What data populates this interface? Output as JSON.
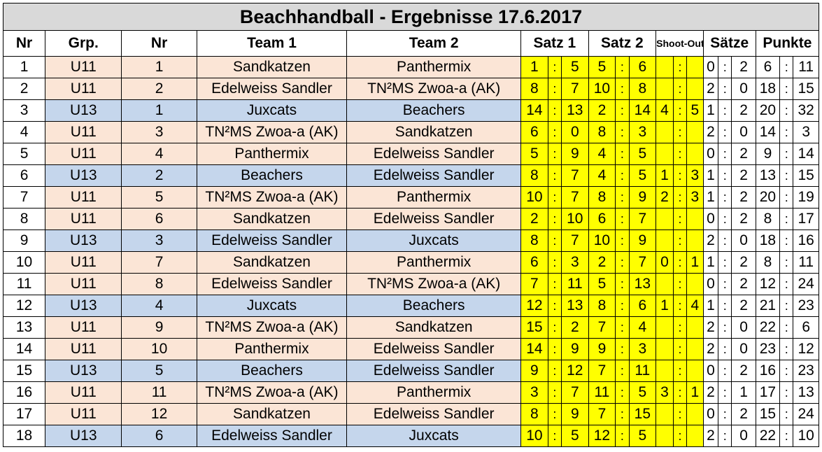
{
  "title": "Beachhandball - Ergebnisse 17.6.2017",
  "headers": {
    "nr": "Nr",
    "grp": "Grp.",
    "gnr": "Nr",
    "team1": "Team 1",
    "team2": "Team 2",
    "satz1": "Satz 1",
    "satz2": "Satz 2",
    "shootout": "Shoot-Out",
    "saetze": "Sätze",
    "punkte": "Punkte"
  },
  "colors": {
    "u11": "#fbe5d6",
    "u13": "#c5d6ec",
    "score": "#ffff00",
    "header": "#d9d9d9"
  },
  "rows": [
    {
      "nr": "1",
      "grp": "U11",
      "gnr": "1",
      "t1": "Sandkatzen",
      "t2": "Panthermix",
      "s1a": "1",
      "s1b": "5",
      "s2a": "5",
      "s2b": "6",
      "soa": "",
      "sob": "",
      "sa": "0",
      "sb": "2",
      "pa": "6",
      "pb": "11"
    },
    {
      "nr": "2",
      "grp": "U11",
      "gnr": "2",
      "t1": "Edelweiss Sandler",
      "t2": "TN²MS Zwoa-a (AK)",
      "s1a": "8",
      "s1b": "7",
      "s2a": "10",
      "s2b": "8",
      "soa": "",
      "sob": "",
      "sa": "2",
      "sb": "0",
      "pa": "18",
      "pb": "15"
    },
    {
      "nr": "3",
      "grp": "U13",
      "gnr": "1",
      "t1": "Juxcats",
      "t2": "Beachers",
      "s1a": "14",
      "s1b": "13",
      "s2a": "2",
      "s2b": "14",
      "soa": "4",
      "sob": "5",
      "sa": "1",
      "sb": "2",
      "pa": "20",
      "pb": "32"
    },
    {
      "nr": "4",
      "grp": "U11",
      "gnr": "3",
      "t1": "TN²MS Zwoa-a (AK)",
      "t2": "Sandkatzen",
      "s1a": "6",
      "s1b": "0",
      "s2a": "8",
      "s2b": "3",
      "soa": "",
      "sob": "",
      "sa": "2",
      "sb": "0",
      "pa": "14",
      "pb": "3"
    },
    {
      "nr": "5",
      "grp": "U11",
      "gnr": "4",
      "t1": "Panthermix",
      "t2": "Edelweiss Sandler",
      "s1a": "5",
      "s1b": "9",
      "s2a": "4",
      "s2b": "5",
      "soa": "",
      "sob": "",
      "sa": "0",
      "sb": "2",
      "pa": "9",
      "pb": "14"
    },
    {
      "nr": "6",
      "grp": "U13",
      "gnr": "2",
      "t1": "Beachers",
      "t2": "Edelweiss Sandler",
      "s1a": "8",
      "s1b": "7",
      "s2a": "4",
      "s2b": "5",
      "soa": "1",
      "sob": "3",
      "sa": "1",
      "sb": "2",
      "pa": "13",
      "pb": "15"
    },
    {
      "nr": "7",
      "grp": "U11",
      "gnr": "5",
      "t1": "TN²MS Zwoa-a (AK)",
      "t2": "Panthermix",
      "s1a": "10",
      "s1b": "7",
      "s2a": "8",
      "s2b": "9",
      "soa": "2",
      "sob": "3",
      "sa": "1",
      "sb": "2",
      "pa": "20",
      "pb": "19"
    },
    {
      "nr": "8",
      "grp": "U11",
      "gnr": "6",
      "t1": "Sandkatzen",
      "t2": "Edelweiss Sandler",
      "s1a": "2",
      "s1b": "10",
      "s2a": "6",
      "s2b": "7",
      "soa": "",
      "sob": "",
      "sa": "0",
      "sb": "2",
      "pa": "8",
      "pb": "17"
    },
    {
      "nr": "9",
      "grp": "U13",
      "gnr": "3",
      "t1": "Edelweiss Sandler",
      "t2": "Juxcats",
      "s1a": "8",
      "s1b": "7",
      "s2a": "10",
      "s2b": "9",
      "soa": "",
      "sob": "",
      "sa": "2",
      "sb": "0",
      "pa": "18",
      "pb": "16"
    },
    {
      "nr": "10",
      "grp": "U11",
      "gnr": "7",
      "t1": "Sandkatzen",
      "t2": "Panthermix",
      "s1a": "6",
      "s1b": "3",
      "s2a": "2",
      "s2b": "7",
      "soa": "0",
      "sob": "1",
      "sa": "1",
      "sb": "2",
      "pa": "8",
      "pb": "11"
    },
    {
      "nr": "11",
      "grp": "U11",
      "gnr": "8",
      "t1": "Edelweiss Sandler",
      "t2": "TN²MS Zwoa-a (AK)",
      "s1a": "7",
      "s1b": "11",
      "s2a": "5",
      "s2b": "13",
      "soa": "",
      "sob": "",
      "sa": "0",
      "sb": "2",
      "pa": "12",
      "pb": "24"
    },
    {
      "nr": "12",
      "grp": "U13",
      "gnr": "4",
      "t1": "Juxcats",
      "t2": "Beachers",
      "s1a": "12",
      "s1b": "13",
      "s2a": "8",
      "s2b": "6",
      "soa": "1",
      "sob": "4",
      "sa": "1",
      "sb": "2",
      "pa": "21",
      "pb": "23"
    },
    {
      "nr": "13",
      "grp": "U11",
      "gnr": "9",
      "t1": "TN²MS Zwoa-a (AK)",
      "t2": "Sandkatzen",
      "s1a": "15",
      "s1b": "2",
      "s2a": "7",
      "s2b": "4",
      "soa": "",
      "sob": "",
      "sa": "2",
      "sb": "0",
      "pa": "22",
      "pb": "6"
    },
    {
      "nr": "14",
      "grp": "U11",
      "gnr": "10",
      "t1": "Panthermix",
      "t2": "Edelweiss Sandler",
      "s1a": "14",
      "s1b": "9",
      "s2a": "9",
      "s2b": "3",
      "soa": "",
      "sob": "",
      "sa": "2",
      "sb": "0",
      "pa": "23",
      "pb": "12"
    },
    {
      "nr": "15",
      "grp": "U13",
      "gnr": "5",
      "t1": "Beachers",
      "t2": "Edelweiss Sandler",
      "s1a": "9",
      "s1b": "12",
      "s2a": "7",
      "s2b": "11",
      "soa": "",
      "sob": "",
      "sa": "0",
      "sb": "2",
      "pa": "16",
      "pb": "23"
    },
    {
      "nr": "16",
      "grp": "U11",
      "gnr": "11",
      "t1": "TN²MS Zwoa-a (AK)",
      "t2": "Panthermix",
      "s1a": "3",
      "s1b": "7",
      "s2a": "11",
      "s2b": "5",
      "soa": "3",
      "sob": "1",
      "sa": "2",
      "sb": "1",
      "pa": "17",
      "pb": "13"
    },
    {
      "nr": "17",
      "grp": "U11",
      "gnr": "12",
      "t1": "Sandkatzen",
      "t2": "Edelweiss Sandler",
      "s1a": "8",
      "s1b": "9",
      "s2a": "7",
      "s2b": "15",
      "soa": "",
      "sob": "",
      "sa": "0",
      "sb": "2",
      "pa": "15",
      "pb": "24"
    },
    {
      "nr": "18",
      "grp": "U13",
      "gnr": "6",
      "t1": "Edelweiss Sandler",
      "t2": "Juxcats",
      "s1a": "10",
      "s1b": "5",
      "s2a": "12",
      "s2b": "5",
      "soa": "",
      "sob": "",
      "sa": "2",
      "sb": "0",
      "pa": "22",
      "pb": "10"
    }
  ]
}
